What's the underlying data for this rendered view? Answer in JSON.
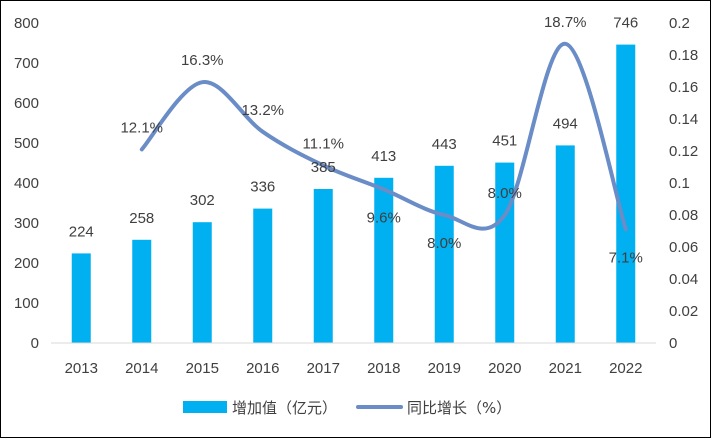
{
  "chart_data": {
    "type": "bar",
    "categories": [
      "2013",
      "2014",
      "2015",
      "2016",
      "2017",
      "2018",
      "2019",
      "2020",
      "2021",
      "2022"
    ],
    "series": [
      {
        "name": "增加值（亿元）",
        "type": "bar",
        "axis": "left",
        "color": "#00B0F0",
        "values": [
          224,
          258,
          302,
          336,
          385,
          413,
          443,
          451,
          494,
          746
        ],
        "labels": [
          "224",
          "258",
          "302",
          "336",
          "385",
          "413",
          "443",
          "451",
          "494",
          "746"
        ]
      },
      {
        "name": "同比增长（%）",
        "type": "line",
        "smooth": true,
        "axis": "right",
        "color": "#6A8CC7",
        "values": [
          null,
          0.121,
          0.163,
          0.132,
          0.111,
          0.096,
          0.08,
          0.08,
          0.187,
          0.071
        ],
        "labels": [
          "",
          "12.1%",
          "16.3%",
          "13.2%",
          "11.1%",
          "9.6%",
          "8.0%",
          "8.0%",
          "18.7%",
          "7.1%"
        ]
      }
    ],
    "y_left": {
      "min": 0,
      "max": 800,
      "ticks": [
        "0",
        "100",
        "200",
        "300",
        "400",
        "500",
        "600",
        "700",
        "800"
      ]
    },
    "y_right": {
      "min": 0,
      "max": 0.2,
      "ticks": [
        "0",
        "0.02",
        "0.04",
        "0.06",
        "0.08",
        "0.1",
        "0.12",
        "0.14",
        "0.16",
        "0.18",
        "0.2"
      ]
    },
    "grid": false,
    "legend": {
      "position": "bottom"
    }
  }
}
